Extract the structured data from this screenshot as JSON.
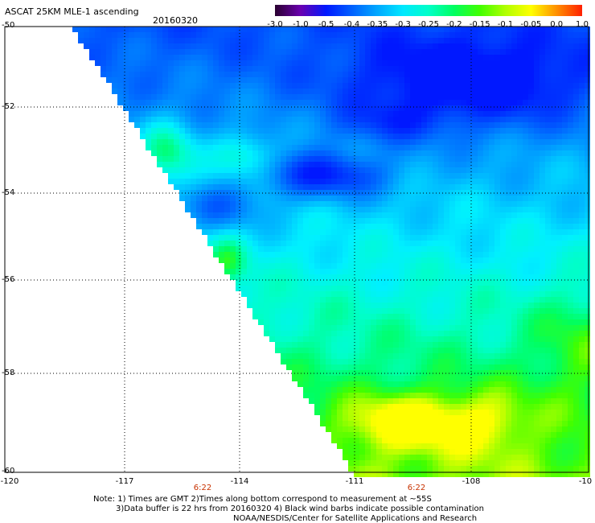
{
  "header": {
    "title": "ASCAT 25KM MLE-1 ascending",
    "date": "20160320"
  },
  "colorbar": {
    "labels": [
      "-3.0",
      "-1.0",
      "-0.5",
      "-0.4",
      "-0.35",
      "-0.3",
      "-0.25",
      "-0.2",
      "-0.15",
      "-0.1",
      "-0.05",
      "0.0",
      "1.0"
    ],
    "colors": [
      "#2a0030",
      "#6a00b0",
      "#0018ff",
      "#0060ff",
      "#00a8ff",
      "#00e8ff",
      "#00ffc8",
      "#00ff60",
      "#40ff00",
      "#b0ff00",
      "#ffff00",
      "#ff9000",
      "#ff2000"
    ]
  },
  "map": {
    "lat_labels": [
      "-50",
      "-52",
      "-54",
      "-56",
      "-58",
      "-60"
    ],
    "lon_labels": [
      "-120",
      "-117",
      "-114",
      "-111",
      "-108",
      "-10"
    ],
    "time_labels": [
      "6:22",
      "6:22"
    ],
    "grid": "dotted"
  },
  "notes": {
    "line1": "Note: 1) Times are GMT 2)Times along bottom correspond to measurement at ~55S",
    "line2": "3)Data buffer is 22 hrs from 20160320 4) Black wind barbs indicate possible contamination",
    "line3": "NOAA/NESDIS/Center for Satellite Applications and Research"
  }
}
